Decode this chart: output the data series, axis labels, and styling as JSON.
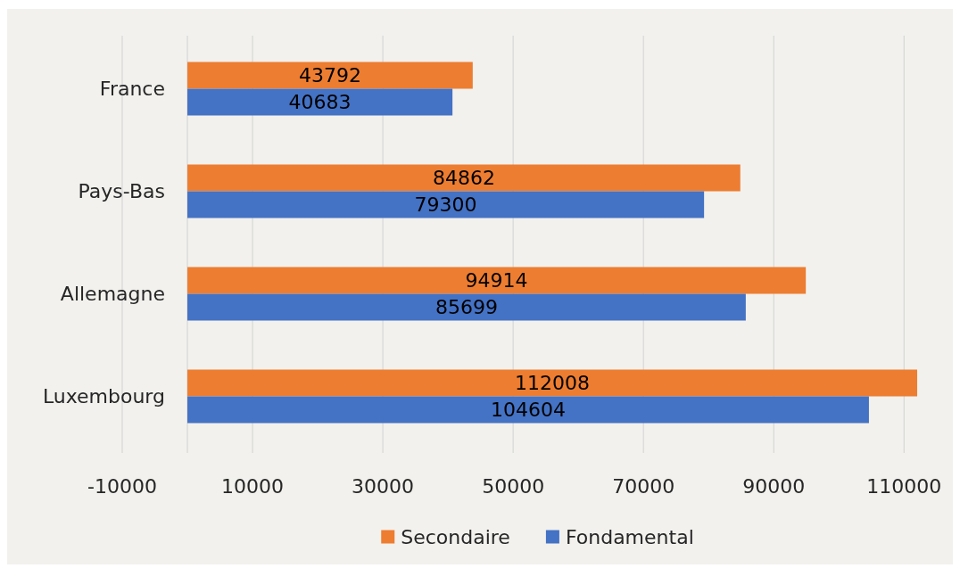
{
  "chart_data": {
    "type": "bar",
    "orientation": "horizontal",
    "categories": [
      "France",
      "Pays-Bas",
      "Allemagne",
      "Luxembourg"
    ],
    "series": [
      {
        "name": "Secondaire",
        "color": "#ed7d31",
        "values": [
          43792,
          84862,
          94914,
          112008
        ]
      },
      {
        "name": "Fondamental",
        "color": "#4472c4",
        "values": [
          40683,
          79300,
          85699,
          104604
        ]
      }
    ],
    "xlim": [
      -10000,
      112008
    ],
    "xticks": [
      -10000,
      10000,
      30000,
      50000,
      70000,
      90000,
      110000
    ],
    "grid": "x",
    "legend": "bottom",
    "data_labels": true
  }
}
